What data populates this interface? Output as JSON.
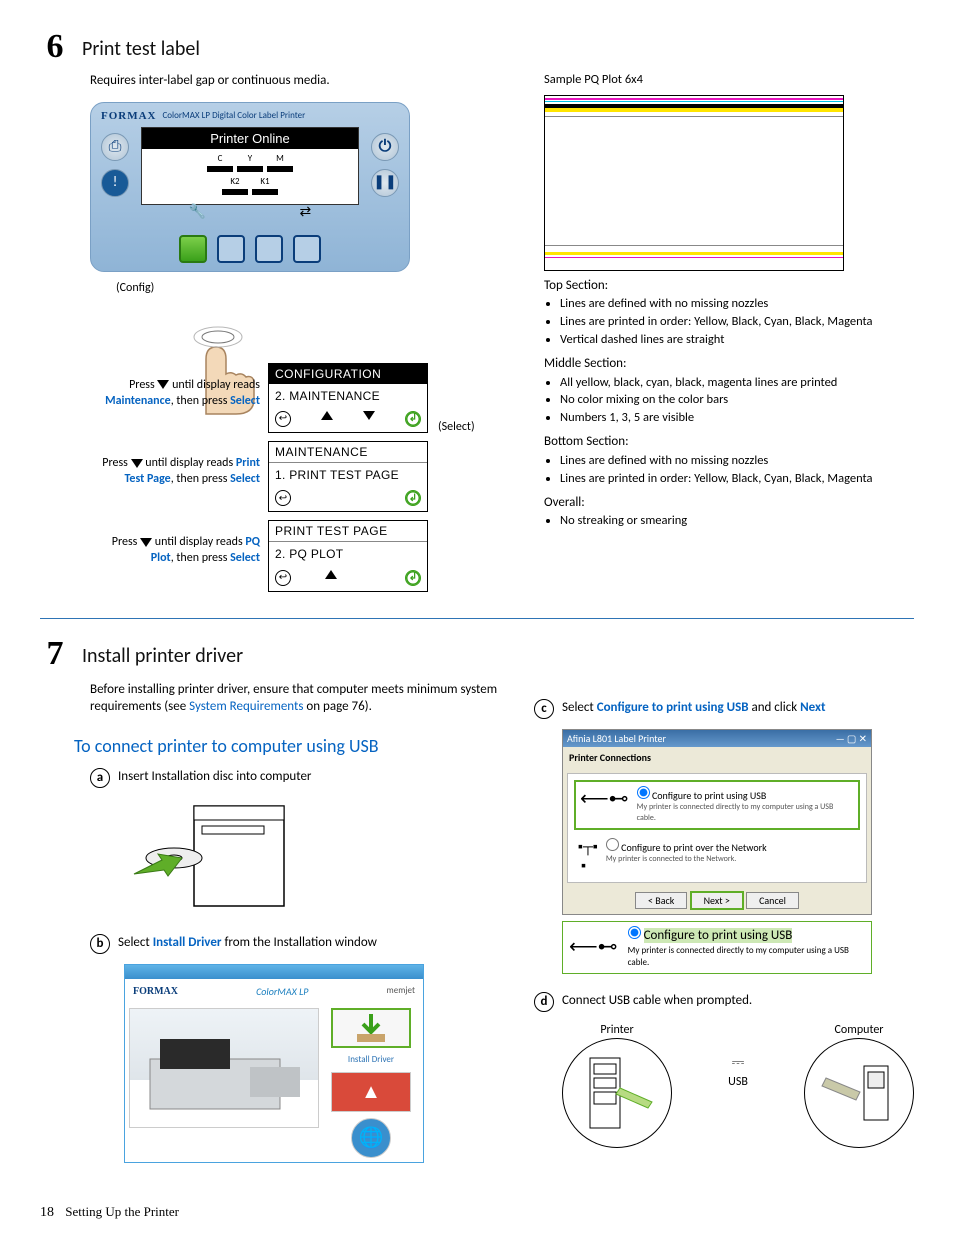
{
  "step6": {
    "num": "6",
    "title": "Print test label",
    "intro": "Requires inter-label gap or continuous media.",
    "lcd": {
      "brand": "FORMAX",
      "subtitle": "ColorMAX LP Digital Color Label Printer",
      "status": "Printer Online",
      "inks": [
        "C",
        "Y",
        "M",
        "K2",
        "K1"
      ],
      "config_label": "(Config)",
      "select_label": "(Select)"
    },
    "steps": [
      {
        "instr_pre": "Press ",
        "instr_mid": " until display reads ",
        "target": "Maintenance",
        "instr_post": ", then press ",
        "select": "Select",
        "box_hdr": "CONFIGURATION",
        "box_row": "2. MAINTENANCE",
        "hdr_dark": true
      },
      {
        "instr_pre": "Press ",
        "instr_mid": " until display reads ",
        "target": "Print Test Page",
        "instr_post": ", then press ",
        "select": "Select",
        "box_hdr": "MAINTENANCE",
        "box_row": "1. PRINT TEST PAGE",
        "hdr_dark": false
      },
      {
        "instr_pre": "Press ",
        "instr_mid": " until display reads ",
        "target": "PQ Plot",
        "instr_post": ", then press ",
        "select": "Select",
        "box_hdr": "PRINT TEST PAGE",
        "box_row": "2. PQ PLOT",
        "hdr_dark": false
      }
    ],
    "right": {
      "title": "Sample PQ Plot 6x4",
      "plot_colors": {
        "magenta": "#e615bd",
        "cyan": "#00c2e6",
        "black": "#000000",
        "yellow": "#ffe500"
      },
      "sections": [
        {
          "title": "Top Section:",
          "items": [
            "Lines are defined with no missing nozzles",
            "Lines are printed in order: Yellow, Black, Cyan, Black, Magenta",
            "Vertical dashed lines are straight"
          ]
        },
        {
          "title": "Middle Section:",
          "items": [
            "All yellow, black, cyan, black, magenta lines are printed",
            "No color mixing on the color bars",
            "Numbers 1, 3, 5 are visible"
          ]
        },
        {
          "title": "Bottom Section:",
          "items": [
            "Lines are defined with no missing nozzles",
            "Lines are printed in order: Yellow, Black, Cyan, Black, Magenta"
          ]
        },
        {
          "title": "Overall:",
          "items": [
            "No streaking or smearing"
          ]
        }
      ]
    }
  },
  "step7": {
    "num": "7",
    "title": "Install printer driver",
    "intro_pre": "Before installing printer driver, ensure that computer meets minimum system requirements (see ",
    "intro_link": "System Requirements",
    "intro_post": " on page 76).",
    "subhead": "To connect printer to computer using USB",
    "a": {
      "letter": "a",
      "text": "Insert Installation disc into computer"
    },
    "b": {
      "letter": "b",
      "pre": "Select ",
      "bold": "Install Driver",
      "post": " from the Installation window"
    },
    "c": {
      "letter": "c",
      "pre": "Select ",
      "bold1": "Configure to print using USB",
      "mid": " and click ",
      "bold2": "Next"
    },
    "d": {
      "letter": "d",
      "text": "Connect USB cable when prompted.",
      "printer": "Printer",
      "usb": "USB",
      "computer": "Computer"
    },
    "dialog": {
      "title": "Afinia L801 Label Printer",
      "section": "Printer Connections",
      "opt1": "Configure to print using USB",
      "opt1_sub": "My printer is connected directly to my computer using a USB cable.",
      "opt2": "Configure to print over the Network",
      "opt2_sub": "My printer is connected to the Network.",
      "btn_back": "< Back",
      "btn_next": "Next >",
      "btn_cancel": "Cancel",
      "callout": "Configure to print using USB",
      "callout_sub": "My printer is connected directly to my computer using a USB cable."
    },
    "installer": {
      "brand1": "FORMAX",
      "brand2": "ColorMAX LP",
      "brand3": "memjet",
      "label": "Install Driver"
    }
  },
  "footer": {
    "page": "18",
    "chapter": "Setting Up the Printer"
  }
}
